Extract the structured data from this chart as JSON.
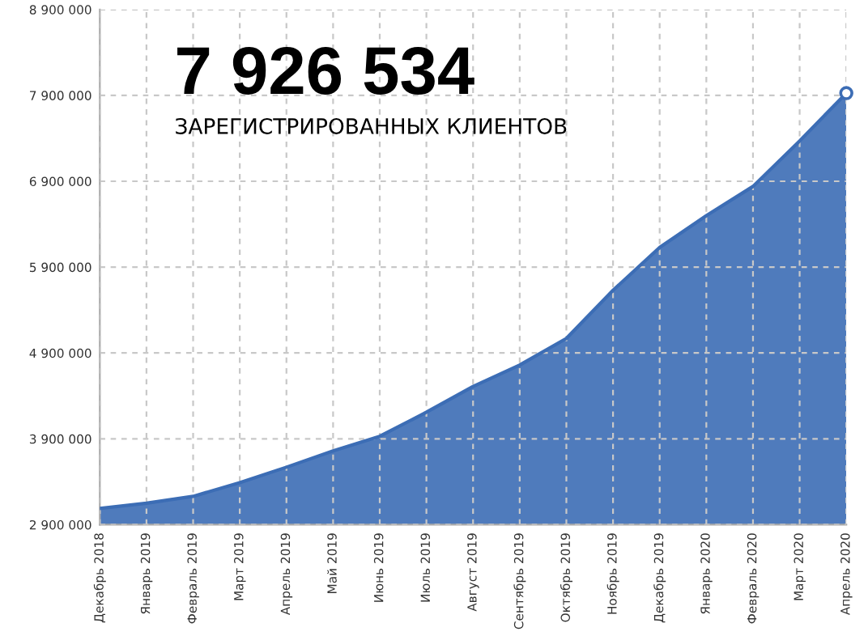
{
  "chart_data": {
    "type": "area",
    "subtitle": "ЗАРЕГИСТРИРОВАННЫХ КЛИЕНТОВ",
    "annotations": [
      "7 926 534"
    ],
    "categories": [
      "Декабрь 2018",
      "Январь 2019",
      "Февраль 2019",
      "Март 2019",
      "Апрель 2019",
      "Май 2019",
      "Июнь 2019",
      "Июль 2019",
      "Август 2019",
      "Сентябрь 2019",
      "Октябрь 2019",
      "Ноябрь 2019",
      "Декабрь 2019",
      "Январь 2020",
      "Февраль 2020",
      "Март 2020",
      "Апрель 2020"
    ],
    "series": [
      {
        "color": "#3c6db5",
        "values": [
          3090000,
          3150000,
          3230000,
          3390000,
          3570000,
          3760000,
          3930000,
          4210000,
          4510000,
          4760000,
          5070000,
          5630000,
          6130000,
          6500000,
          6840000,
          7370000,
          7926534
        ]
      }
    ],
    "ylim": [
      2900000,
      8900000
    ],
    "yticks": [
      {
        "value": 2900000,
        "label": "2 900 000"
      },
      {
        "value": 3900000,
        "label": "3 900 000"
      },
      {
        "value": 4900000,
        "label": "4 900 000"
      },
      {
        "value": 5900000,
        "label": "5 900 000"
      },
      {
        "value": 6900000,
        "label": "6 900 000"
      },
      {
        "value": 7900000,
        "label": "7 900 000"
      },
      {
        "value": 8900000,
        "label": "8 900 000"
      }
    ],
    "grid": true
  }
}
